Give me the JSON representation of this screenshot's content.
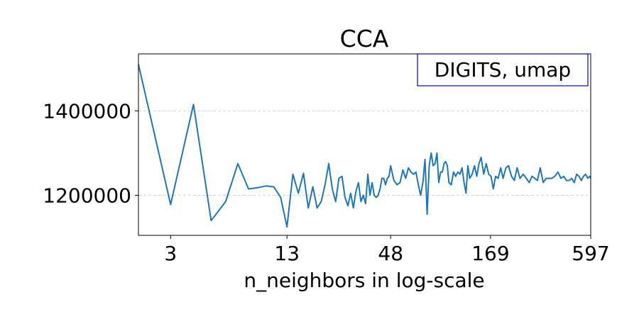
{
  "chart_data": {
    "type": "line",
    "title": "CCA",
    "xlabel": "n_neighbors in log-scale",
    "ylabel": "",
    "x_scale": "log",
    "xlim": [
      2,
      597
    ],
    "ylim": [
      1105000,
      1535000
    ],
    "x_ticks": [
      3,
      13,
      48,
      169,
      597
    ],
    "x_tick_labels": [
      "3",
      "13",
      "48",
      "169",
      "597"
    ],
    "y_ticks": [
      1200000,
      1400000
    ],
    "y_tick_labels": [
      "1200000",
      "1400000"
    ],
    "grid": "horizontal dashed",
    "annotation": "DIGITS, umap",
    "annotation_position": "top-right",
    "series": [
      {
        "color": "#1f77b4",
        "x": [
          2,
          3,
          4,
          5,
          6,
          7,
          8,
          9,
          10,
          11,
          12,
          13,
          14,
          15,
          16,
          17,
          18,
          19,
          20,
          21,
          22,
          23,
          24,
          25,
          26,
          27,
          28,
          29,
          30,
          31,
          32,
          33,
          34,
          35,
          36,
          37,
          38,
          39,
          40,
          41,
          42,
          43,
          44,
          45,
          46,
          47,
          48,
          50,
          52,
          54,
          56,
          58,
          60,
          62,
          64,
          66,
          68,
          70,
          72,
          74,
          76,
          78,
          80,
          82,
          84,
          86,
          88,
          90,
          92,
          94,
          96,
          98,
          100,
          103,
          106,
          109,
          112,
          115,
          118,
          121,
          124,
          127,
          130,
          134,
          138,
          142,
          146,
          150,
          155,
          160,
          165,
          170,
          175,
          180,
          186,
          192,
          198,
          205,
          212,
          220,
          228,
          236,
          245,
          255,
          265,
          275,
          285,
          295,
          305,
          316,
          328,
          340,
          352,
          365,
          380,
          395,
          410,
          425,
          440,
          455,
          470,
          485,
          500,
          515,
          530,
          545,
          560,
          575,
          590,
          597
        ],
        "y": [
          1510000,
          1178000,
          1415000,
          1140000,
          1185000,
          1275000,
          1215000,
          1218000,
          1222000,
          1220000,
          1195000,
          1125000,
          1250000,
          1205000,
          1252000,
          1170000,
          1220000,
          1170000,
          1185000,
          1225000,
          1275000,
          1215000,
          1185000,
          1240000,
          1245000,
          1195000,
          1175000,
          1205000,
          1170000,
          1210000,
          1230000,
          1185000,
          1200000,
          1180000,
          1250000,
          1200000,
          1230000,
          1200000,
          1195000,
          1200000,
          1215000,
          1240000,
          1240000,
          1225000,
          1240000,
          1245000,
          1270000,
          1235000,
          1225000,
          1230000,
          1260000,
          1240000,
          1265000,
          1255000,
          1250000,
          1255000,
          1225000,
          1200000,
          1230000,
          1285000,
          1155000,
          1270000,
          1300000,
          1270000,
          1275000,
          1300000,
          1230000,
          1255000,
          1255000,
          1275000,
          1280000,
          1270000,
          1230000,
          1225000,
          1255000,
          1245000,
          1255000,
          1250000,
          1265000,
          1230000,
          1205000,
          1270000,
          1240000,
          1250000,
          1270000,
          1245000,
          1275000,
          1290000,
          1250000,
          1275000,
          1250000,
          1245000,
          1215000,
          1245000,
          1240000,
          1265000,
          1240000,
          1265000,
          1270000,
          1245000,
          1235000,
          1265000,
          1240000,
          1250000,
          1240000,
          1230000,
          1245000,
          1240000,
          1235000,
          1265000,
          1230000,
          1240000,
          1240000,
          1240000,
          1245000,
          1255000,
          1240000,
          1245000,
          1235000,
          1235000,
          1240000,
          1230000,
          1250000,
          1245000,
          1235000,
          1245000,
          1250000,
          1240000,
          1245000,
          1240000
        ]
      }
    ]
  }
}
